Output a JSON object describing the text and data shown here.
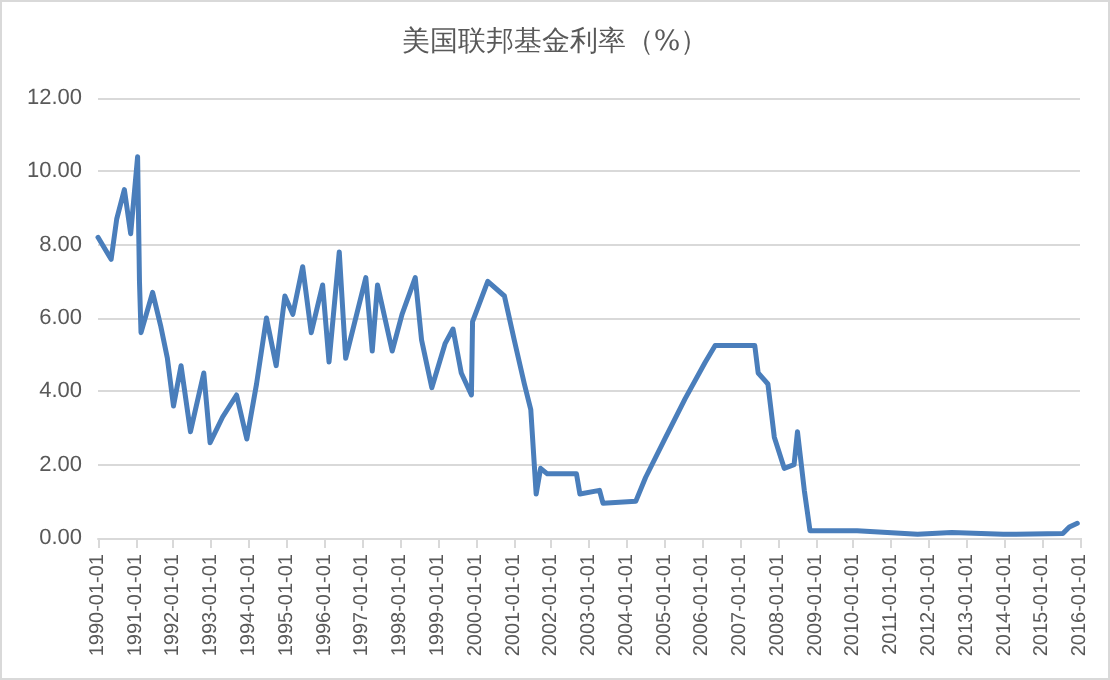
{
  "chart_data": {
    "type": "line",
    "title": "美国联邦基金利率（%）",
    "x": [
      "1990-01-01",
      "1990-05-08",
      "1990-07-01",
      "1990-09-13",
      "1990-11-13",
      "1991-01-19",
      "1991-02-06",
      "1991-02-21",
      "1991-06-13",
      "1991-08-29",
      "1991-11-03",
      "1992-01-01",
      "1992-03-14",
      "1992-06-13",
      "1992-10-20",
      "1992-12-20",
      "1993-04-20",
      "1993-09-02",
      "1993-12-10",
      "1994-03-14",
      "1994-06-18",
      "1994-09-20",
      "1994-12-13",
      "1995-02-28",
      "1995-06-03",
      "1995-08-25",
      "1995-12-13",
      "1996-02-13",
      "1996-05-22",
      "1996-07-23",
      "1997-02-03",
      "1997-04-06",
      "1997-05-27",
      "1997-10-16",
      "1998-01-19",
      "1998-05-27",
      "1998-07-27",
      "1998-11-03",
      "1999-03-11",
      "1999-05-27",
      "1999-08-15",
      "1999-11-21",
      "1999-12-02",
      "2000-04-27",
      "2000-10-05",
      "2001-01-08",
      "2001-04-16",
      "2001-06-17",
      "2001-08-08",
      "2001-09-20",
      "2001-11-24",
      "2002-09-02",
      "2002-10-05",
      "2003-04-13",
      "2003-05-16",
      "2004-03-28",
      "2004-07-01",
      "2005-01-12",
      "2005-07-19",
      "2006-01-30",
      "2006-05-05",
      "2007-05-23",
      "2007-06-25",
      "2007-09-27",
      "2007-11-28",
      "2008-03-03",
      "2008-06-06",
      "2008-07-09",
      "2008-09-13",
      "2008-11-07",
      "2010-02-06",
      "2011-09-13",
      "2012-08-08",
      "2013-12-20",
      "2015-07-19",
      "2015-09-20",
      "2015-12-06"
    ],
    "series": [
      {
        "color": "#4a7ebb",
        "values": [
          8.2,
          7.6,
          8.7,
          9.5,
          8.3,
          10.4,
          7.0,
          5.6,
          6.7,
          5.8,
          4.9,
          3.6,
          4.7,
          2.9,
          4.5,
          2.6,
          3.3,
          3.9,
          2.7,
          4.2,
          6.0,
          4.7,
          6.6,
          6.1,
          7.4,
          5.6,
          6.9,
          4.8,
          7.8,
          4.9,
          7.1,
          5.1,
          6.9,
          5.1,
          6.1,
          7.1,
          5.4,
          4.1,
          5.3,
          5.7,
          4.5,
          3.9,
          5.9,
          7.0,
          6.6,
          5.4,
          4.2,
          3.5,
          1.2,
          1.9,
          1.75,
          1.75,
          1.2,
          1.3,
          0.95,
          1.0,
          1.65,
          2.75,
          3.8,
          4.8,
          5.25,
          5.25,
          4.5,
          4.2,
          2.75,
          1.9,
          2.0,
          2.9,
          1.3,
          0.2,
          0.2,
          0.1,
          0.15,
          0.1,
          0.12,
          0.3,
          0.4
        ]
      }
    ],
    "xlim": [
      "1990-01-01",
      "2016-01-01"
    ],
    "xticks": [
      "1990-01-01",
      "1991-01-01",
      "1992-01-01",
      "1993-01-01",
      "1994-01-01",
      "1995-01-01",
      "1996-01-01",
      "1997-01-01",
      "1998-01-01",
      "1999-01-01",
      "2000-01-01",
      "2001-01-01",
      "2002-01-01",
      "2003-01-01",
      "2004-01-01",
      "2005-01-01",
      "2006-01-01",
      "2007-01-01",
      "2008-01-01",
      "2009-01-01",
      "2010-01-01",
      "2011-01-01",
      "2012-01-01",
      "2013-01-01",
      "2014-01-01",
      "2015-01-01",
      "2016-01-01"
    ],
    "ylim": [
      0,
      12
    ],
    "yticks": [
      {
        "value": 0,
        "label": "0.00"
      },
      {
        "value": 2,
        "label": "2.00"
      },
      {
        "value": 4,
        "label": "4.00"
      },
      {
        "value": 6,
        "label": "6.00"
      },
      {
        "value": 8,
        "label": "8.00"
      },
      {
        "value": 10,
        "label": "10.00"
      },
      {
        "value": 12,
        "label": "12.00"
      }
    ],
    "grid": "y",
    "marker": "none",
    "line_style": "solid"
  }
}
